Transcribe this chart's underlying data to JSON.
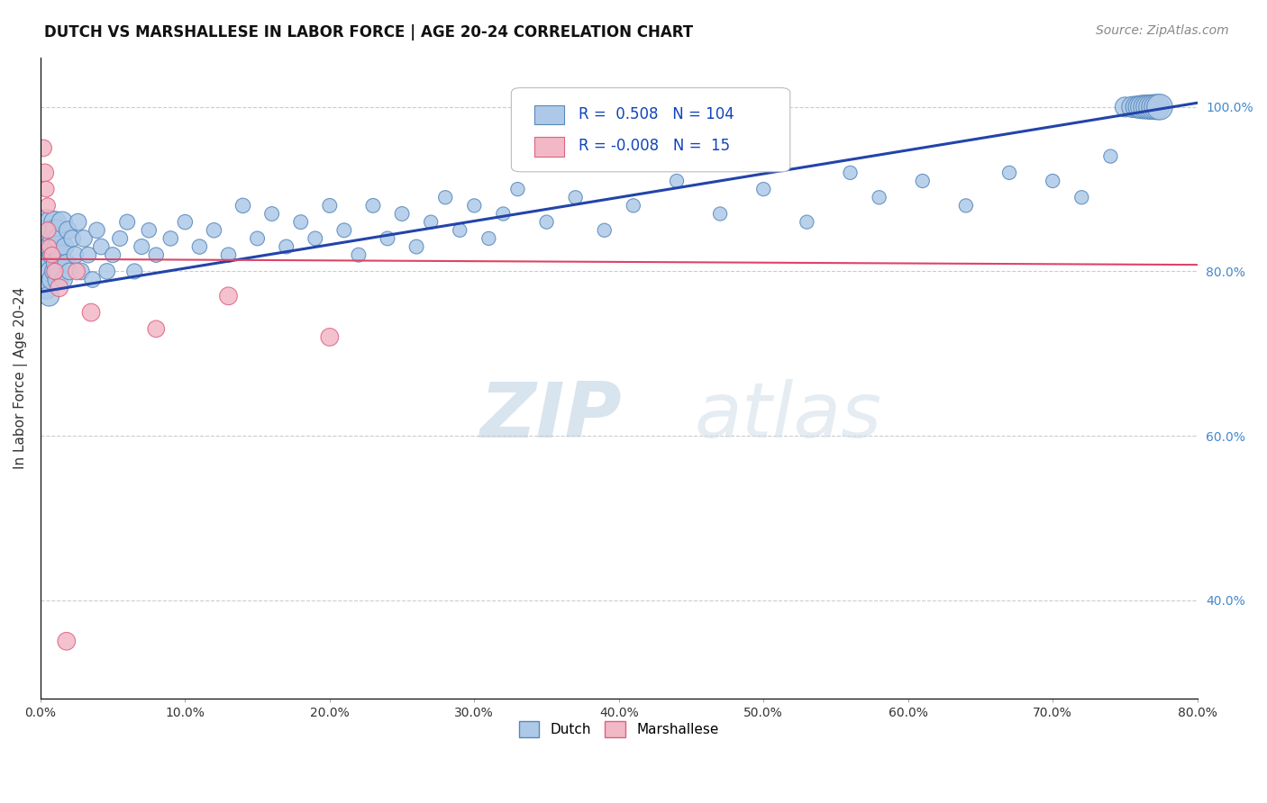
{
  "title": "DUTCH VS MARSHALLESE IN LABOR FORCE | AGE 20-24 CORRELATION CHART",
  "source_text": "Source: ZipAtlas.com",
  "ylabel": "In Labor Force | Age 20-24",
  "xlim": [
    0.0,
    0.8
  ],
  "ylim": [
    0.28,
    1.06
  ],
  "xticks": [
    0.0,
    0.1,
    0.2,
    0.3,
    0.4,
    0.5,
    0.6,
    0.7,
    0.8
  ],
  "xticklabels": [
    "0.0%",
    "10.0%",
    "20.0%",
    "30.0%",
    "40.0%",
    "50.0%",
    "60.0%",
    "70.0%",
    "80.0%"
  ],
  "yticks_right": [
    0.4,
    0.6,
    0.8,
    1.0
  ],
  "yticklabels_right": [
    "40.0%",
    "60.0%",
    "80.0%",
    "100.0%"
  ],
  "dutch_color": "#aec9e8",
  "dutch_edge_color": "#5588bb",
  "marshallese_color": "#f2b8c6",
  "marshallese_edge_color": "#e06080",
  "blue_line_color": "#2244aa",
  "pink_line_color": "#dd4466",
  "dutch_R": 0.508,
  "dutch_N": 104,
  "marshallese_R": -0.008,
  "marshallese_N": 15,
  "watermark_zip": "ZIP",
  "watermark_atlas": "atlas",
  "watermark_color": "#ccdded",
  "grid_color": "#cccccc",
  "background_color": "#ffffff",
  "dutch_x": [
    0.002,
    0.003,
    0.003,
    0.004,
    0.004,
    0.004,
    0.005,
    0.005,
    0.005,
    0.006,
    0.006,
    0.006,
    0.007,
    0.007,
    0.007,
    0.008,
    0.008,
    0.009,
    0.009,
    0.01,
    0.01,
    0.01,
    0.011,
    0.011,
    0.012,
    0.012,
    0.013,
    0.013,
    0.014,
    0.015,
    0.016,
    0.017,
    0.018,
    0.019,
    0.02,
    0.022,
    0.024,
    0.026,
    0.028,
    0.03,
    0.033,
    0.036,
    0.039,
    0.042,
    0.046,
    0.05,
    0.055,
    0.06,
    0.065,
    0.07,
    0.075,
    0.08,
    0.09,
    0.1,
    0.11,
    0.12,
    0.13,
    0.14,
    0.15,
    0.16,
    0.17,
    0.18,
    0.19,
    0.2,
    0.21,
    0.22,
    0.23,
    0.24,
    0.25,
    0.26,
    0.27,
    0.28,
    0.29,
    0.3,
    0.31,
    0.32,
    0.33,
    0.35,
    0.37,
    0.39,
    0.41,
    0.44,
    0.47,
    0.5,
    0.53,
    0.56,
    0.58,
    0.61,
    0.64,
    0.67,
    0.7,
    0.72,
    0.74,
    0.75,
    0.755,
    0.758,
    0.76,
    0.762,
    0.764,
    0.766,
    0.768,
    0.77,
    0.772,
    0.774
  ],
  "dutch_y": [
    0.84,
    0.82,
    0.8,
    0.86,
    0.78,
    0.83,
    0.85,
    0.79,
    0.82,
    0.77,
    0.84,
    0.81,
    0.86,
    0.8,
    0.83,
    0.85,
    0.79,
    0.82,
    0.84,
    0.8,
    0.86,
    0.83,
    0.81,
    0.85,
    0.79,
    0.83,
    0.8,
    0.84,
    0.82,
    0.86,
    0.79,
    0.83,
    0.81,
    0.85,
    0.8,
    0.84,
    0.82,
    0.86,
    0.8,
    0.84,
    0.82,
    0.79,
    0.85,
    0.83,
    0.8,
    0.82,
    0.84,
    0.86,
    0.8,
    0.83,
    0.85,
    0.82,
    0.84,
    0.86,
    0.83,
    0.85,
    0.82,
    0.88,
    0.84,
    0.87,
    0.83,
    0.86,
    0.84,
    0.88,
    0.85,
    0.82,
    0.88,
    0.84,
    0.87,
    0.83,
    0.86,
    0.89,
    0.85,
    0.88,
    0.84,
    0.87,
    0.9,
    0.86,
    0.89,
    0.85,
    0.88,
    0.91,
    0.87,
    0.9,
    0.86,
    0.92,
    0.89,
    0.91,
    0.88,
    0.92,
    0.91,
    0.89,
    0.94,
    1.0,
    1.0,
    1.0,
    1.0,
    1.0,
    1.0,
    1.0,
    1.0,
    1.0,
    1.0,
    1.0
  ],
  "dutch_sizes": [
    350,
    300,
    280,
    400,
    320,
    350,
    280,
    300,
    320,
    260,
    300,
    280,
    320,
    260,
    300,
    280,
    260,
    300,
    280,
    260,
    300,
    280,
    260,
    300,
    260,
    280,
    260,
    280,
    260,
    280,
    200,
    200,
    200,
    200,
    180,
    180,
    180,
    180,
    180,
    180,
    160,
    160,
    160,
    160,
    160,
    150,
    150,
    150,
    150,
    150,
    140,
    140,
    140,
    140,
    140,
    140,
    140,
    140,
    130,
    130,
    130,
    130,
    130,
    130,
    130,
    130,
    130,
    130,
    130,
    130,
    120,
    120,
    120,
    120,
    120,
    120,
    120,
    120,
    120,
    120,
    120,
    120,
    120,
    120,
    120,
    120,
    120,
    120,
    120,
    120,
    120,
    120,
    120,
    250,
    280,
    300,
    320,
    350,
    350,
    370,
    380,
    390,
    400,
    420
  ],
  "marshallese_x": [
    0.002,
    0.003,
    0.004,
    0.005,
    0.005,
    0.006,
    0.008,
    0.01,
    0.013,
    0.018,
    0.025,
    0.035,
    0.08,
    0.13,
    0.2
  ],
  "marshallese_y": [
    0.95,
    0.92,
    0.9,
    0.88,
    0.85,
    0.83,
    0.82,
    0.8,
    0.78,
    0.35,
    0.8,
    0.75,
    0.73,
    0.77,
    0.72
  ],
  "marshallese_sizes": [
    180,
    200,
    160,
    150,
    170,
    140,
    160,
    170,
    200,
    200,
    180,
    200,
    180,
    200,
    200
  ],
  "blue_line_x0": 0.0,
  "blue_line_y0": 0.775,
  "blue_line_x1": 0.8,
  "blue_line_y1": 1.005,
  "pink_line_x0": 0.0,
  "pink_line_y0": 0.815,
  "pink_line_x1": 0.8,
  "pink_line_y1": 0.808
}
